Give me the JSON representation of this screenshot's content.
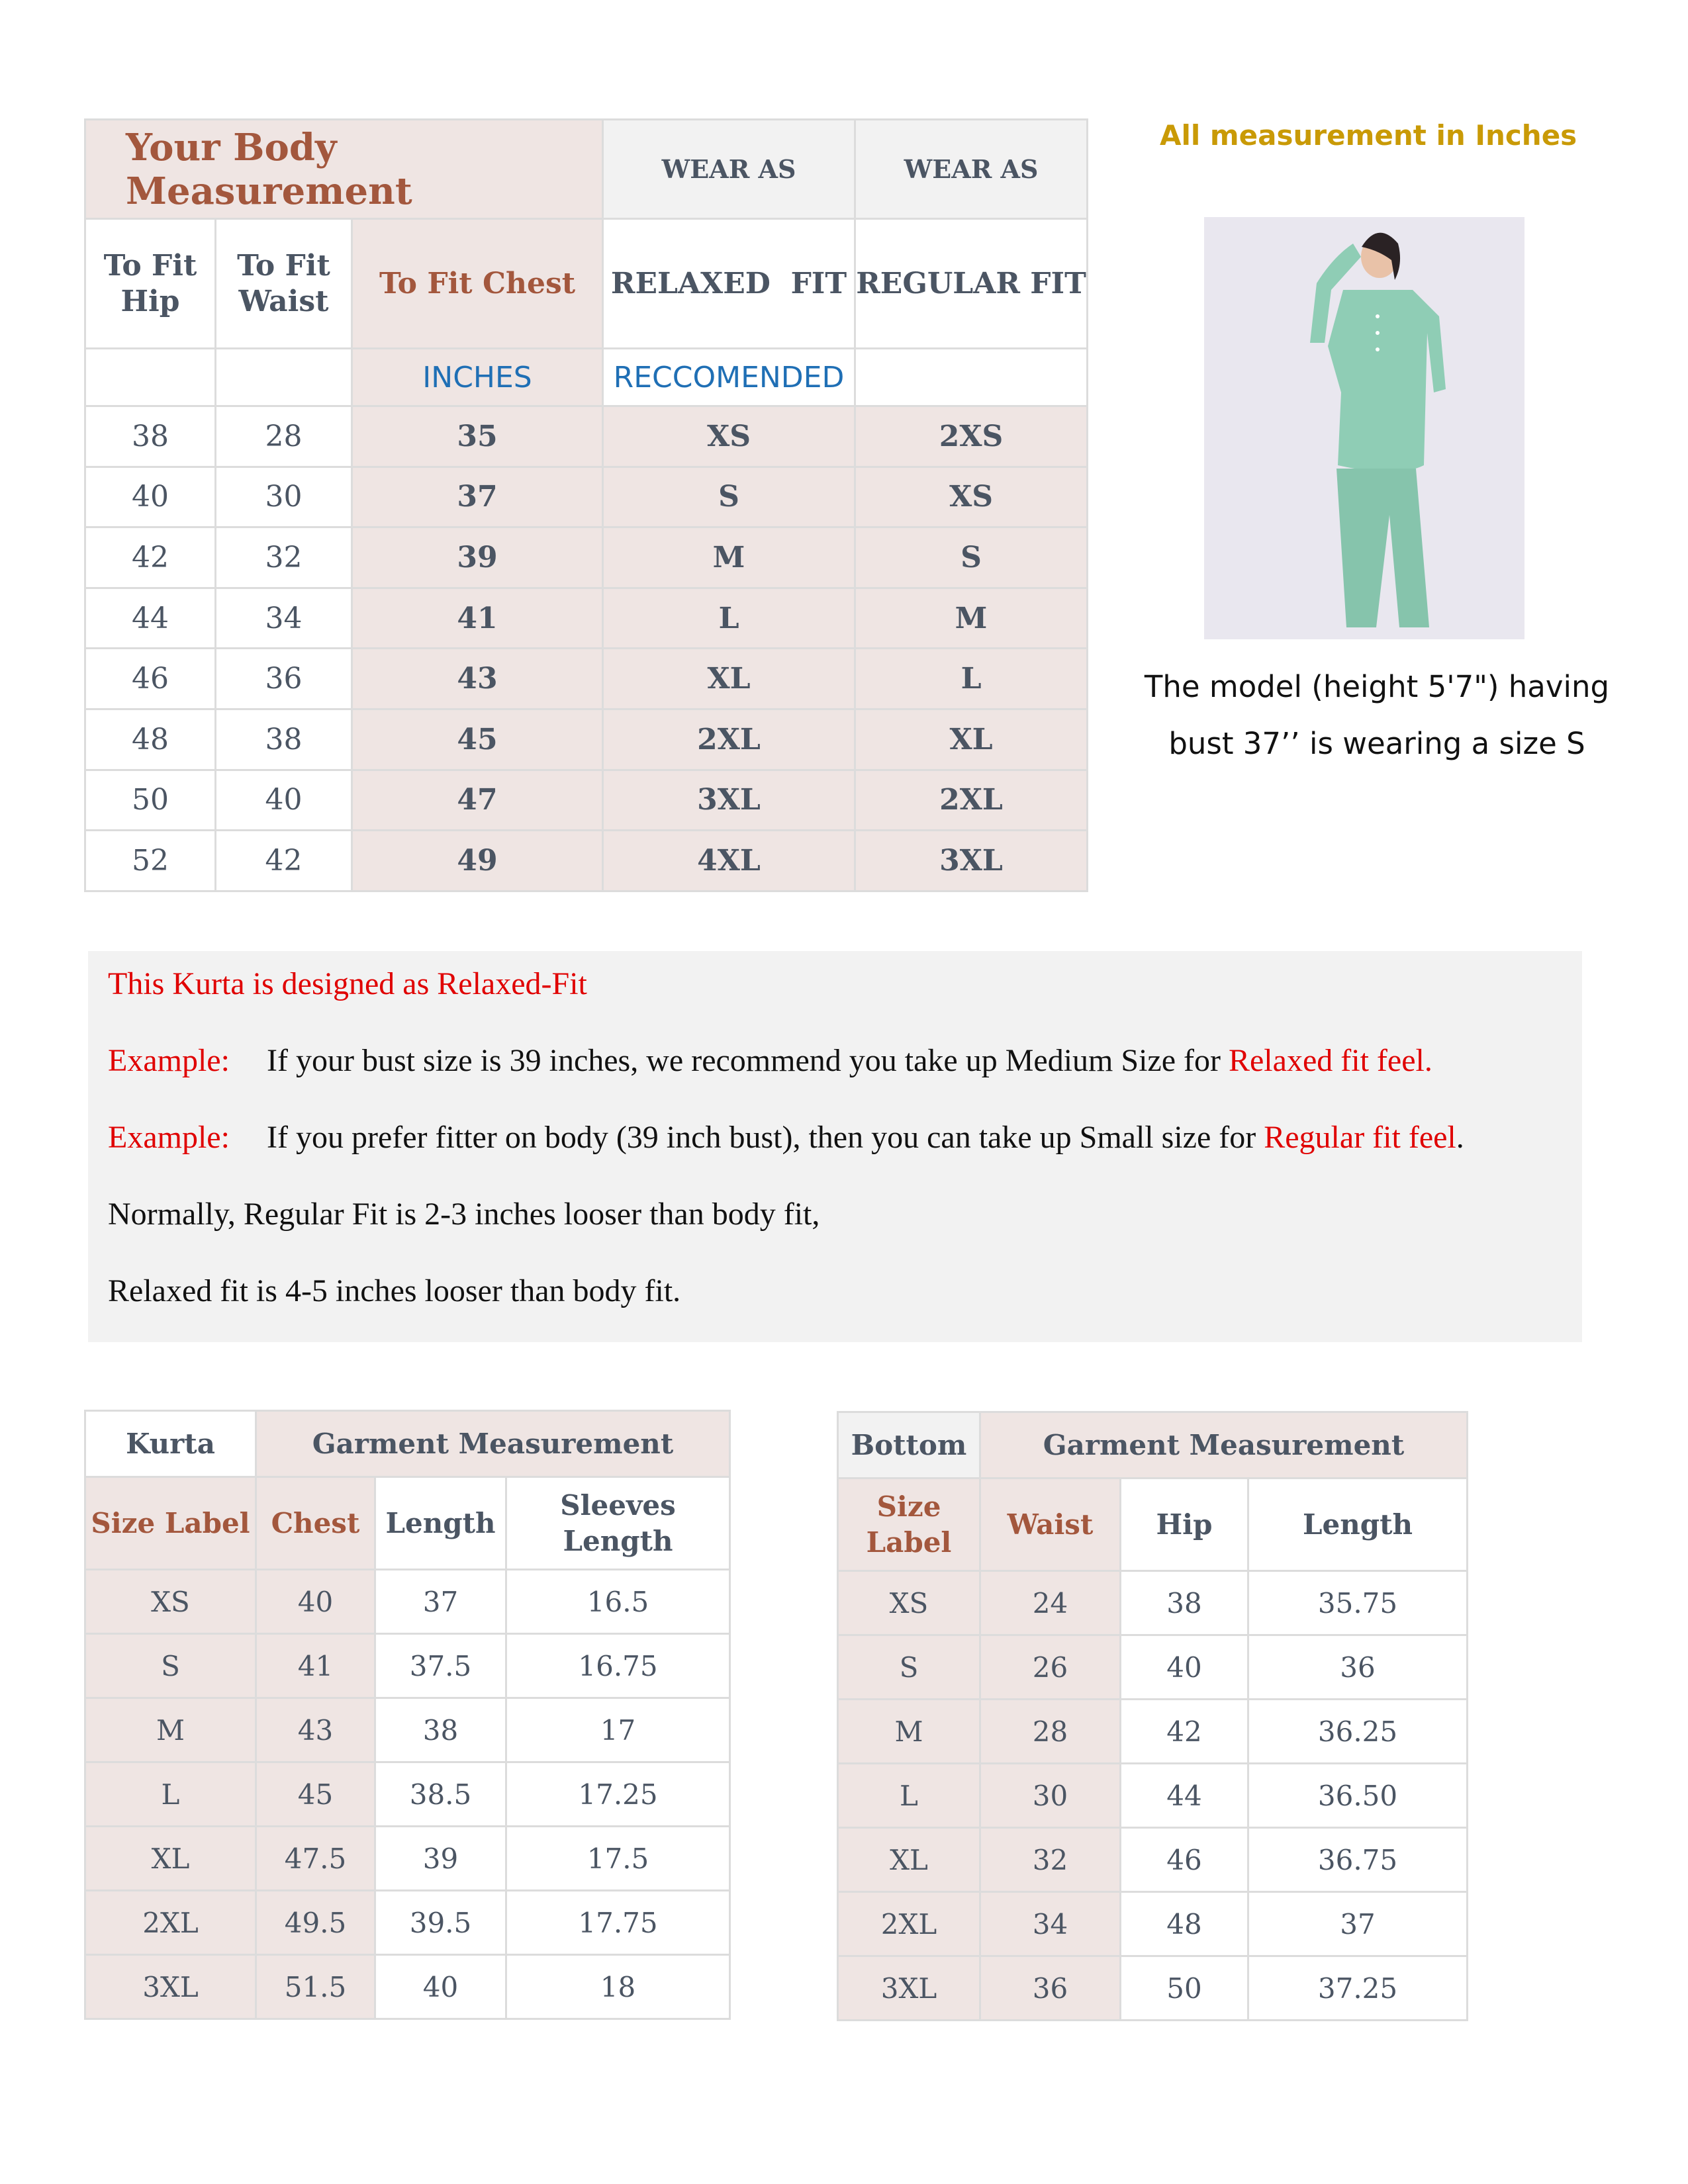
{
  "body_table": {
    "title": "Your Body Measurement",
    "wear_as_1": "WEAR AS",
    "wear_as_2": "WEAR AS",
    "col_hip": "To Fit Hip",
    "col_waist": "To Fit Waist",
    "col_chest": "To Fit Chest",
    "col_relaxed": "RELAXED  FIT",
    "col_regular": "REGULAR FIT",
    "inches": "INCHES",
    "recommended": "RECCOMENDED",
    "rows": [
      {
        "hip": "38",
        "waist": "28",
        "chest": "35",
        "relaxed": "XS",
        "regular": "2XS"
      },
      {
        "hip": "40",
        "waist": "30",
        "chest": "37",
        "relaxed": "S",
        "regular": "XS"
      },
      {
        "hip": "42",
        "waist": "32",
        "chest": "39",
        "relaxed": "M",
        "regular": "S"
      },
      {
        "hip": "44",
        "waist": "34",
        "chest": "41",
        "relaxed": "L",
        "regular": "M"
      },
      {
        "hip": "46",
        "waist": "36",
        "chest": "43",
        "relaxed": "XL",
        "regular": "L"
      },
      {
        "hip": "48",
        "waist": "38",
        "chest": "45",
        "relaxed": "2XL",
        "regular": "XL"
      },
      {
        "hip": "50",
        "waist": "40",
        "chest": "47",
        "relaxed": "3XL",
        "regular": "2XL"
      },
      {
        "hip": "52",
        "waist": "42",
        "chest": "49",
        "relaxed": "4XL",
        "regular": "3XL"
      }
    ]
  },
  "side": {
    "note": "All measurement in Inches",
    "caption_1": "The model (height 5'7\") having",
    "caption_2": "bust 37’’ is wearing a size S"
  },
  "info": {
    "line1": "This Kurta is designed as Relaxed-Fit",
    "ex1_label": "Example:",
    "ex1_text": "If your bust size is 39 inches, we recommend you take up Medium Size for ",
    "ex1_red": "Relaxed fit feel.",
    "ex2_label": "Example:",
    "ex2_text": "If you prefer fitter on body (39 inch bust), then you can take up Small size for ",
    "ex2_red": "Regular fit feel",
    "ex2_end": ".",
    "line4": "Normally, Regular Fit is 2-3 inches looser than body fit,",
    "line5": "Relaxed fit is 4-5 inches looser than body fit."
  },
  "kurta_table": {
    "name": "Kurta",
    "group": "Garment Measurement",
    "headers": [
      "Size Label",
      "Chest",
      "Length",
      "Sleeves Length"
    ],
    "rows": [
      [
        "XS",
        "40",
        "37",
        "16.5"
      ],
      [
        "S",
        "41",
        "37.5",
        "16.75"
      ],
      [
        "M",
        "43",
        "38",
        "17"
      ],
      [
        "L",
        "45",
        "38.5",
        "17.25"
      ],
      [
        "XL",
        "47.5",
        "39",
        "17.5"
      ],
      [
        "2XL",
        "49.5",
        "39.5",
        "17.75"
      ],
      [
        "3XL",
        "51.5",
        "40",
        "18"
      ]
    ]
  },
  "bottom_table": {
    "name": "Bottom",
    "group": "Garment Measurement",
    "headers": [
      "Size Label",
      "Waist",
      "Hip",
      "Length"
    ],
    "rows": [
      [
        "XS",
        "24",
        "38",
        "35.75"
      ],
      [
        "S",
        "26",
        "40",
        "36"
      ],
      [
        "M",
        "28",
        "42",
        "36.25"
      ],
      [
        "L",
        "30",
        "44",
        "36.50"
      ],
      [
        "XL",
        "32",
        "46",
        "36.75"
      ],
      [
        "2XL",
        "34",
        "48",
        "37"
      ],
      [
        "3XL",
        "36",
        "50",
        "37.25"
      ]
    ]
  },
  "colors": {
    "pink": "#efe5e3",
    "grey": "#f2f2f2",
    "title": "#a3573d",
    "blue": "#1f6fb5",
    "note": "#c99a06",
    "red": "#e00000",
    "kurta_green": "#8fcdb5"
  }
}
